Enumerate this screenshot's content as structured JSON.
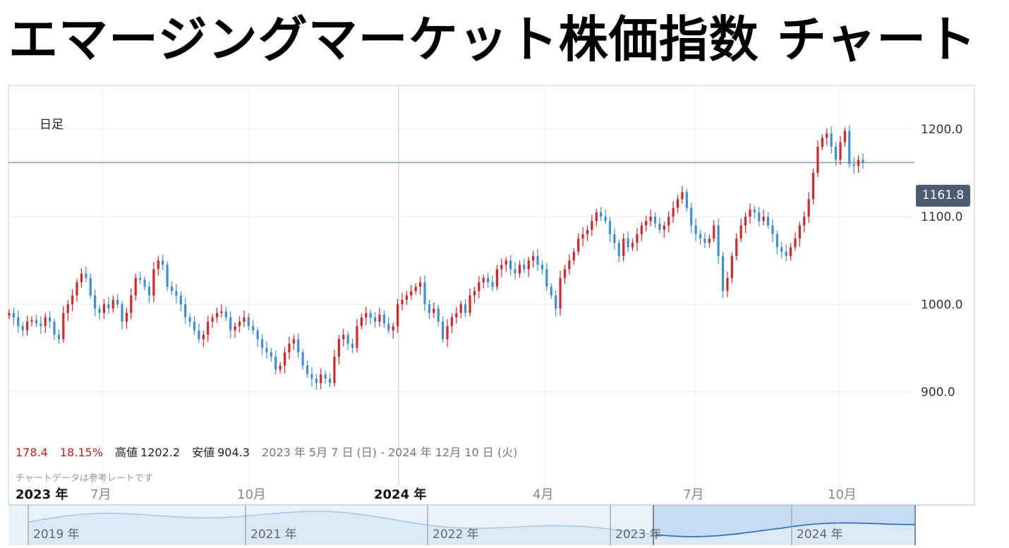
{
  "page_title": "エマージングマーケット株価指数 チャート",
  "chart_data": {
    "type": "candlestick",
    "period_label": "日足",
    "ylim": [
      848,
      1250
    ],
    "y_ticks": [
      "1200.0",
      "1100.0",
      "1000.0",
      "900.0"
    ],
    "current_value": "1161.8",
    "date_range": "2023 年 5月 7 日 (日) - 2024 年 12月 10 日 (火)",
    "change": "178.4",
    "change_pct": "18.15%",
    "high_label": "高値",
    "high_value": "1202.2",
    "low_label": "安値",
    "low_value": "904.3",
    "note": "チャートデータは参考レートです",
    "x_labels": [
      {
        "text": "2023 年",
        "major": true
      },
      {
        "text": "7月",
        "major": false
      },
      {
        "text": "10月",
        "major": false
      },
      {
        "text": "2024 年",
        "major": true
      },
      {
        "text": "4月",
        "major": false
      },
      {
        "text": "7月",
        "major": false
      },
      {
        "text": "10月",
        "major": false
      }
    ],
    "series": [
      {
        "values": [
          990,
          985,
          975,
          970,
          980,
          982,
          978,
          975,
          985,
          980,
          965,
          960,
          990,
          1000,
          1010,
          1025,
          1035,
          1030,
          1010,
          995,
          990,
          1000,
          995,
          1005,
          1000,
          980,
          990,
          1010,
          1030,
          1028,
          1020,
          1010,
          1040,
          1050,
          1045,
          1020,
          1015,
          1010,
          1000,
          985,
          980,
          970,
          960,
          965,
          980,
          985,
          990,
          992,
          985,
          970,
          975,
          980,
          985,
          975,
          970,
          960,
          950,
          945,
          940,
          925,
          930,
          945,
          955,
          960,
          945,
          930,
          920,
          915,
          910,
          920,
          915,
          910,
          940,
          960,
          965,
          955,
          950,
          975,
          985,
          990,
          985,
          980,
          988,
          978,
          970,
          975,
          1000,
          1005,
          1010,
          1015,
          1020,
          1025,
          1000,
          990,
          995,
          980,
          960,
          975,
          985,
          990,
          1000,
          990,
          1010,
          1015,
          1025,
          1030,
          1025,
          1020,
          1040,
          1045,
          1050,
          1040,
          1035,
          1045,
          1040,
          1050,
          1055,
          1045,
          1040,
          1020,
          1010,
          995,
          1030,
          1040,
          1050,
          1060,
          1075,
          1080,
          1085,
          1095,
          1105,
          1100,
          1095,
          1080,
          1070,
          1055,
          1075,
          1065,
          1070,
          1080,
          1090,
          1095,
          1100,
          1092,
          1085,
          1090,
          1100,
          1110,
          1120,
          1128,
          1110,
          1090,
          1080,
          1075,
          1070,
          1075,
          1090,
          1055,
          1015,
          1030,
          1055,
          1075,
          1090,
          1100,
          1108,
          1105,
          1095,
          1100,
          1090,
          1080,
          1065,
          1060,
          1055,
          1065,
          1075,
          1090,
          1100,
          1120,
          1150,
          1180,
          1190,
          1195,
          1180,
          1165,
          1185,
          1198,
          1160,
          1158,
          1165,
          1161.8
        ]
      }
    ]
  }
}
